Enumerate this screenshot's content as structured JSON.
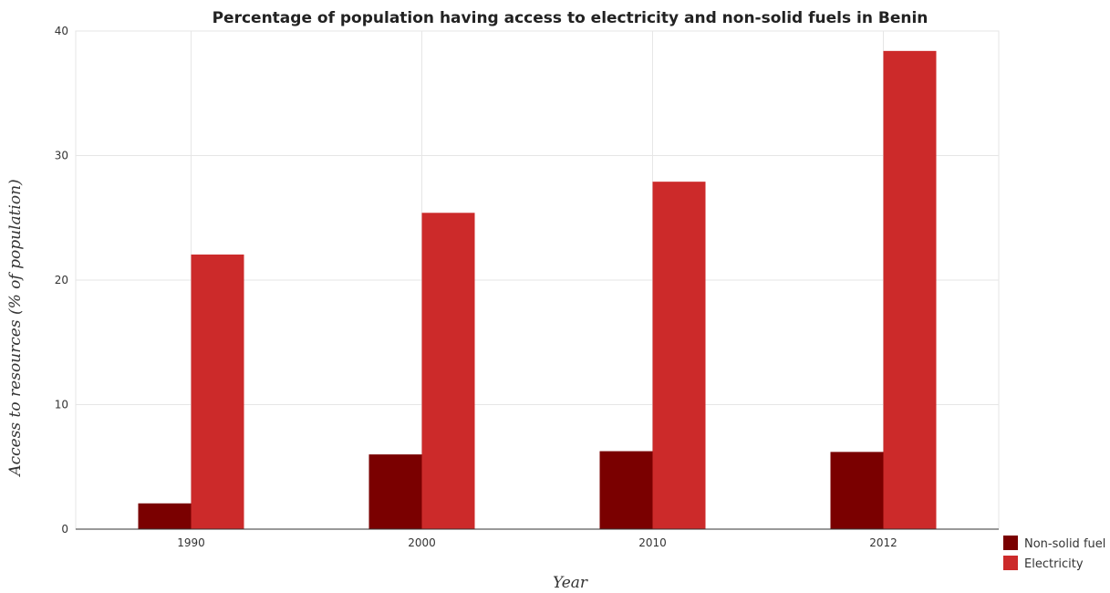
{
  "chart_data": {
    "type": "bar",
    "title": "Percentage of population having access to electricity and non-solid fuels in Benin",
    "xlabel": "Year",
    "ylabel": "Access to resources (% of population)",
    "categories": [
      "1990",
      "2000",
      "2010",
      "2012"
    ],
    "series": [
      {
        "name": "Non-solid fuel",
        "values": [
          2.07,
          6.0,
          6.26,
          6.2
        ],
        "color": "#7a0000"
      },
      {
        "name": "Electricity",
        "values": [
          22.05,
          25.4,
          27.9,
          38.4
        ],
        "color": "#cc2a2a"
      }
    ],
    "ylim": [
      0,
      40
    ],
    "yticks": [
      0,
      10,
      20,
      30,
      40
    ],
    "grid": true,
    "legend_position": "bottom-right"
  }
}
